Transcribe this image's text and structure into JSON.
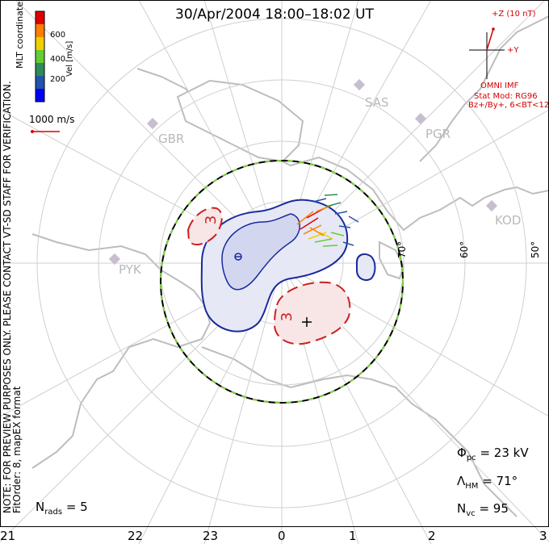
{
  "title": "30/Apr/2004 18:00–18:02 UT",
  "colorbar": {
    "label": "Vel [m/s]",
    "ticks": [
      "600",
      "400",
      "200"
    ],
    "colors": [
      "#e00000",
      "#ff7f00",
      "#f0d000",
      "#66cc33",
      "#2e8b57",
      "#2255aa",
      "#0000ff"
    ]
  },
  "coordinate_system": "MLT coordinates",
  "reference_vector": "1000 m/s",
  "imf": {
    "z_label": "+Z (10 nT)",
    "y_label": "+Y",
    "source": "OMNI IMF",
    "stat_model": "Stat Mod: RG96",
    "condition": "Bz+/By+, 6<BT<12",
    "color": "#d40000"
  },
  "stations": [
    "SAS",
    "PGR",
    "GBR",
    "KOD",
    "PYK"
  ],
  "latitude_labels": [
    "70°",
    "60°",
    "50°"
  ],
  "mlt_labels": [
    "21",
    "22",
    "23",
    "0",
    "1",
    "2",
    "3"
  ],
  "contours": {
    "negative_cell": {
      "label": "",
      "color": "#1a2a9c"
    },
    "positive_cell_1": {
      "label": "3",
      "color": "#cc1f1f"
    },
    "positive_cell_2": {
      "label": "3",
      "color": "#cc1f1f"
    }
  },
  "stats": {
    "phi_pc": "Φpc = 23 kV",
    "phi_sym": "Φ",
    "phi_sub": "pc",
    "phi_val": "= 23 kV",
    "lambda_sym": "Λ",
    "lambda_sub": "HM",
    "lambda_val": "= 71°",
    "nvc_sym": "N",
    "nvc_sub": "vc",
    "nvc_val": "= 95",
    "nrads_sym": "N",
    "nrads_sub": "rads",
    "nrads_val": "= 5"
  },
  "notes": {
    "preview": "NOTE: FOR PREVIEW PURPOSES ONLY. PLEASE CONTACT VT-SD STAFF FOR VERIFICATION.",
    "fit": "FitOrder: 8, mapEX format"
  }
}
